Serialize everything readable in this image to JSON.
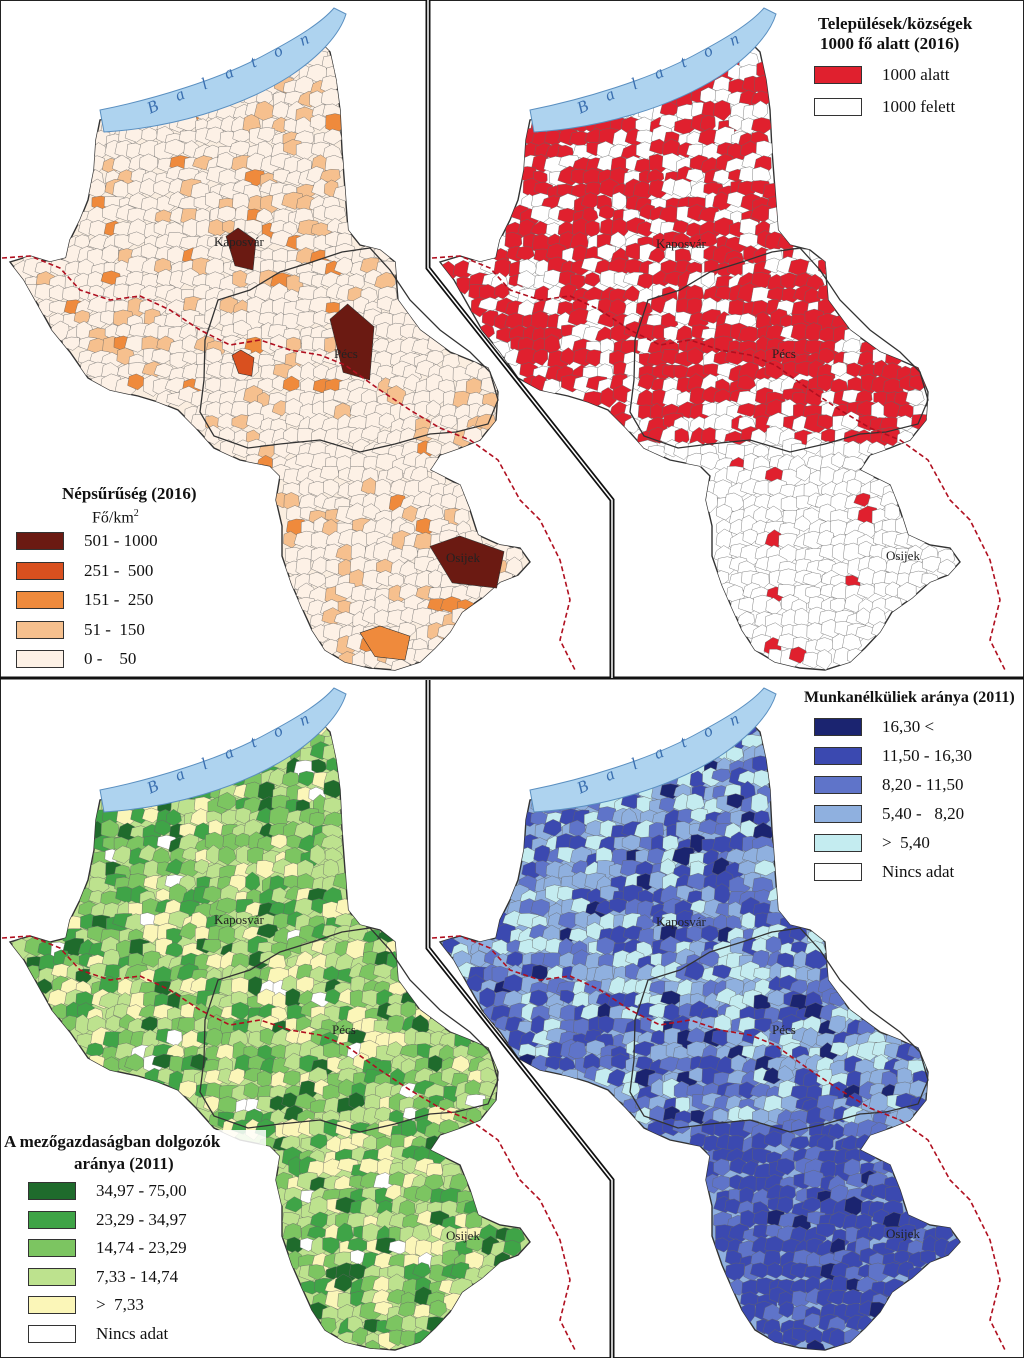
{
  "colors": {
    "lake": "#aed3ef",
    "border_dashed": "#b01020",
    "region_outline": "#555555",
    "panel_divider": "#111111"
  },
  "cities": {
    "kaposvar": "Kaposvár",
    "pecs": "Pécs",
    "osijek": "Osijek"
  },
  "lake": {
    "name": "B a l a t o n"
  },
  "panels": {
    "density": {
      "title": "Népsűrűség (2016)",
      "unit": "Fő/km",
      "unit_sup": "2",
      "base_color": "#fbeee0",
      "classes": [
        {
          "label": "501 - 1000",
          "color": "#6b1a12"
        },
        {
          "label": "251 -  500",
          "color": "#d9501f"
        },
        {
          "label": "151 -  250",
          "color": "#ef8a3c"
        },
        {
          "label": "51 -  150",
          "color": "#f6c08e"
        },
        {
          "label": "0 -    50",
          "color": "#fdf1e6"
        }
      ]
    },
    "small_settlements": {
      "title_line1": "Települések/községek",
      "title_line2": "1000 fő alatt (2016)",
      "classes": [
        {
          "label": "1000 alatt",
          "color": "#e0202e"
        },
        {
          "label": "1000 felett",
          "color": "#ffffff"
        }
      ]
    },
    "agriculture": {
      "title_line1": "A mezőgazdaságban dolgozók",
      "title_line2": "aránya (2011)",
      "classes": [
        {
          "label": "34,97 - 75,00",
          "color": "#1f6b2c"
        },
        {
          "label": "23,29 - 34,97",
          "color": "#3fa447"
        },
        {
          "label": "14,74 - 23,29",
          "color": "#7cc561"
        },
        {
          "label": "7,33 - 14,74",
          "color": "#bde28e"
        },
        {
          "label": ">  7,33",
          "color": "#fbf6b8"
        },
        {
          "label": "Nincs adat",
          "color": "#ffffff"
        }
      ]
    },
    "unemployment": {
      "title": "Munkanélküliek aránya (2011)",
      "classes": [
        {
          "label": "16,30 <",
          "color": "#1b2470"
        },
        {
          "label": "11,50 - 16,30",
          "color": "#3b49b0"
        },
        {
          "label": "8,20 - 11,50",
          "color": "#5f74c9"
        },
        {
          "label": "5,40 -   8,20",
          "color": "#8fb0df"
        },
        {
          "label": ">  5,40",
          "color": "#c4ecf0"
        },
        {
          "label": "Nincs adat",
          "color": "#ffffff"
        }
      ]
    }
  }
}
